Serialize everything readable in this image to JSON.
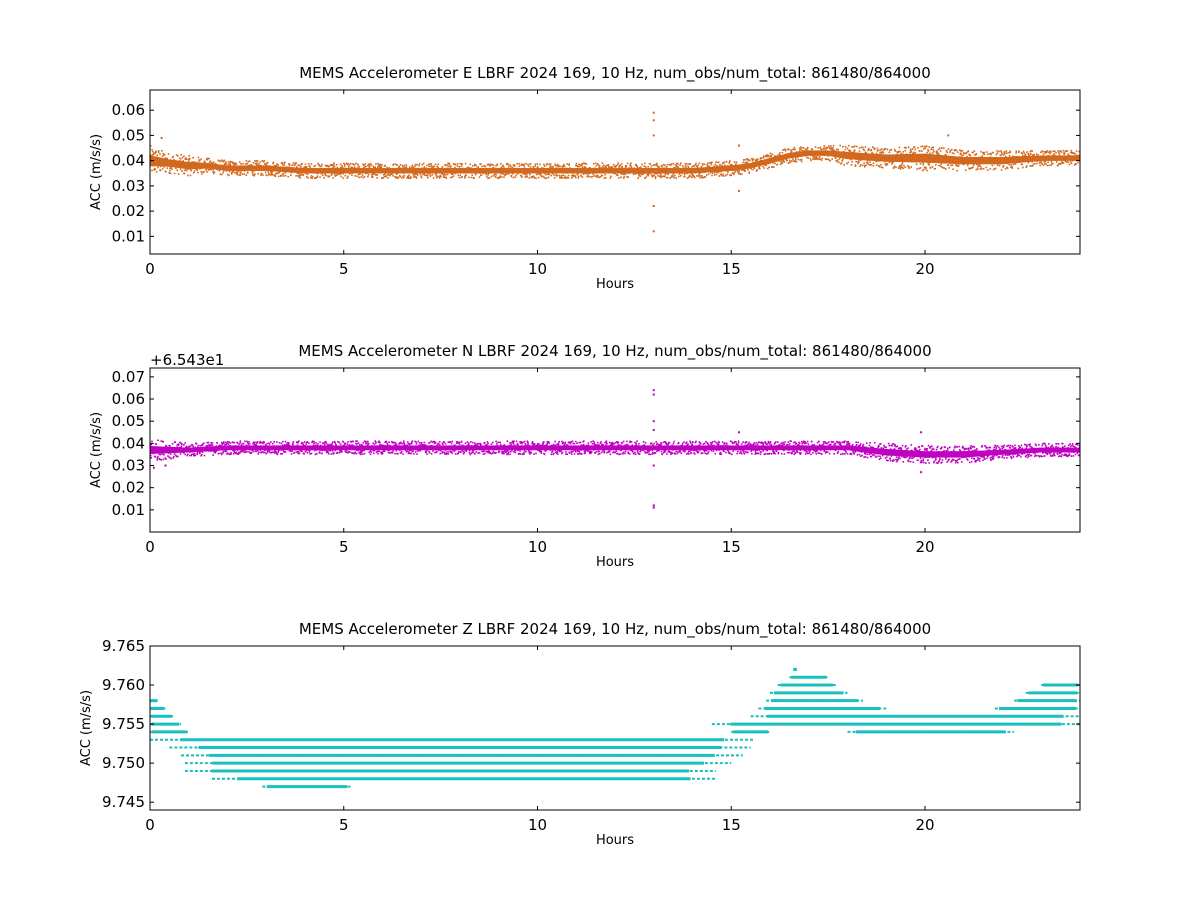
{
  "chart_data": [
    {
      "type": "scatter",
      "title": "MEMS Accelerometer E LBRF 2024 169, 10 Hz, num_obs/num_total: 861480/864000",
      "xlabel": "Hours",
      "ylabel": "ACC (m/s/s)",
      "offset_label": "",
      "color": "#D2691E",
      "xlim": [
        0,
        24
      ],
      "ylim": [
        0.003,
        0.068
      ],
      "x_ticks": [
        0,
        5,
        10,
        15,
        20
      ],
      "y_ticks": [
        0.01,
        0.02,
        0.03,
        0.04,
        0.05,
        0.06
      ],
      "x_tick_labels": [
        "0",
        "5",
        "10",
        "15",
        "20"
      ],
      "y_tick_labels": [
        "0.01",
        "0.02",
        "0.03",
        "0.04",
        "0.05",
        "0.06"
      ],
      "series": [
        {
          "x": [
            0,
            0.5,
            1,
            1.5,
            2,
            3,
            4,
            5,
            6,
            7,
            8,
            9,
            10,
            11,
            12,
            13,
            14,
            15,
            15.5,
            16,
            16.5,
            17,
            17.5,
            18,
            19,
            20,
            21,
            22,
            23,
            24
          ],
          "y": [
            0.04,
            0.039,
            0.038,
            0.038,
            0.037,
            0.037,
            0.036,
            0.036,
            0.036,
            0.036,
            0.036,
            0.036,
            0.036,
            0.036,
            0.036,
            0.036,
            0.036,
            0.037,
            0.038,
            0.04,
            0.042,
            0.043,
            0.043,
            0.042,
            0.041,
            0.041,
            0.04,
            0.04,
            0.041,
            0.041
          ],
          "spread": [
            0.006,
            0.004,
            0.004,
            0.003,
            0.003,
            0.003,
            0.003,
            0.003,
            0.003,
            0.003,
            0.003,
            0.003,
            0.003,
            0.003,
            0.003,
            0.003,
            0.003,
            0.003,
            0.003,
            0.003,
            0.003,
            0.003,
            0.003,
            0.004,
            0.004,
            0.005,
            0.004,
            0.004,
            0.003,
            0.003
          ]
        }
      ],
      "outliers": [
        {
          "x": 0.3,
          "y": 0.049
        },
        {
          "x": 13.0,
          "y": 0.059
        },
        {
          "x": 13.0,
          "y": 0.056
        },
        {
          "x": 13.0,
          "y": 0.05
        },
        {
          "x": 13.0,
          "y": 0.022
        },
        {
          "x": 13.0,
          "y": 0.012
        },
        {
          "x": 15.2,
          "y": 0.046
        },
        {
          "x": 15.2,
          "y": 0.028
        },
        {
          "x": 20.6,
          "y": 0.05
        }
      ]
    },
    {
      "type": "scatter",
      "title": "MEMS Accelerometer N LBRF 2024 169, 10 Hz, num_obs/num_total: 861480/864000",
      "xlabel": "Hours",
      "ylabel": "ACC (m/s/s)",
      "offset_label": "+6.543e1",
      "color": "#C000C0",
      "xlim": [
        0,
        24
      ],
      "ylim": [
        0.0,
        0.074
      ],
      "x_ticks": [
        0,
        5,
        10,
        15,
        20
      ],
      "y_ticks": [
        0.01,
        0.02,
        0.03,
        0.04,
        0.05,
        0.06,
        0.07
      ],
      "x_tick_labels": [
        "0",
        "5",
        "10",
        "15",
        "20"
      ],
      "y_tick_labels": [
        "0.01",
        "0.02",
        "0.03",
        "0.04",
        "0.05",
        "0.06",
        "0.07"
      ],
      "series": [
        {
          "x": [
            0,
            1,
            2,
            3,
            4,
            5,
            6,
            7,
            8,
            9,
            10,
            11,
            12,
            13,
            14,
            15,
            16,
            17,
            18,
            19,
            20,
            21,
            22,
            23,
            24
          ],
          "y": [
            0.037,
            0.037,
            0.038,
            0.038,
            0.038,
            0.038,
            0.038,
            0.038,
            0.038,
            0.038,
            0.038,
            0.038,
            0.038,
            0.038,
            0.038,
            0.038,
            0.038,
            0.038,
            0.038,
            0.036,
            0.035,
            0.035,
            0.036,
            0.037,
            0.037
          ],
          "spread": [
            0.005,
            0.003,
            0.003,
            0.003,
            0.003,
            0.003,
            0.003,
            0.003,
            0.003,
            0.003,
            0.003,
            0.003,
            0.003,
            0.003,
            0.003,
            0.003,
            0.003,
            0.003,
            0.003,
            0.004,
            0.004,
            0.004,
            0.003,
            0.003,
            0.003
          ]
        }
      ],
      "outliers": [
        {
          "x": 13.0,
          "y": 0.064
        },
        {
          "x": 13.0,
          "y": 0.062
        },
        {
          "x": 13.0,
          "y": 0.05
        },
        {
          "x": 13.0,
          "y": 0.046
        },
        {
          "x": 13.0,
          "y": 0.03
        },
        {
          "x": 13.0,
          "y": 0.012
        },
        {
          "x": 13.0,
          "y": 0.011
        },
        {
          "x": 15.2,
          "y": 0.045
        },
        {
          "x": 19.9,
          "y": 0.045
        },
        {
          "x": 19.9,
          "y": 0.027
        },
        {
          "x": 0.1,
          "y": 0.029
        },
        {
          "x": 0.4,
          "y": 0.03
        }
      ]
    },
    {
      "type": "scatter",
      "title": "MEMS Accelerometer Z LBRF 2024 169, 10 Hz, num_obs/num_total: 861480/864000",
      "xlabel": "Hours",
      "ylabel": "ACC (m/s/s)",
      "offset_label": "",
      "color": "#1ABFBF",
      "xlim": [
        0,
        24
      ],
      "ylim": [
        9.744,
        9.765
      ],
      "x_ticks": [
        0,
        5,
        10,
        15,
        20
      ],
      "y_ticks": [
        9.745,
        9.75,
        9.755,
        9.76,
        9.765
      ],
      "x_tick_labels": [
        "0",
        "5",
        "10",
        "15",
        "20"
      ],
      "y_tick_labels": [
        "9.745",
        "9.750",
        "9.755",
        "9.760",
        "9.765"
      ],
      "quantized_levels": [
        {
          "y": 9.747,
          "x_from": 2.9,
          "x_to": 5.2
        },
        {
          "y": 9.748,
          "x_from": 1.6,
          "x_to": 14.6
        },
        {
          "y": 9.749,
          "x_from": 0.9,
          "x_to": 14.6
        },
        {
          "y": 9.75,
          "x_from": 0.9,
          "x_to": 15.0
        },
        {
          "y": 9.751,
          "x_from": 0.8,
          "x_to": 15.3
        },
        {
          "y": 9.752,
          "x_from": 0.5,
          "x_to": 15.5
        },
        {
          "y": 9.753,
          "x_from": 0.0,
          "x_to": 15.6
        },
        {
          "y": 9.754,
          "x_from": 0.0,
          "x_to": 1.0
        },
        {
          "y": 9.754,
          "x_from": 15.0,
          "x_to": 16.0
        },
        {
          "y": 9.754,
          "x_from": 18.0,
          "x_to": 22.3
        },
        {
          "y": 9.755,
          "x_from": 0.0,
          "x_to": 0.8
        },
        {
          "y": 9.755,
          "x_from": 14.5,
          "x_to": 24.0
        },
        {
          "y": 9.756,
          "x_from": 0.0,
          "x_to": 0.6
        },
        {
          "y": 9.756,
          "x_from": 15.5,
          "x_to": 24.0
        },
        {
          "y": 9.757,
          "x_from": 0.0,
          "x_to": 0.4
        },
        {
          "y": 9.757,
          "x_from": 15.7,
          "x_to": 19.0
        },
        {
          "y": 9.757,
          "x_from": 21.8,
          "x_to": 24.0
        },
        {
          "y": 9.758,
          "x_from": 0.0,
          "x_to": 0.2
        },
        {
          "y": 9.758,
          "x_from": 15.9,
          "x_to": 18.4
        },
        {
          "y": 9.758,
          "x_from": 22.3,
          "x_to": 24.0
        },
        {
          "y": 9.759,
          "x_from": 16.0,
          "x_to": 18.0
        },
        {
          "y": 9.759,
          "x_from": 22.6,
          "x_to": 24.0
        },
        {
          "y": 9.76,
          "x_from": 16.2,
          "x_to": 17.7
        },
        {
          "y": 9.76,
          "x_from": 23.0,
          "x_to": 24.0
        },
        {
          "y": 9.761,
          "x_from": 16.5,
          "x_to": 17.5
        },
        {
          "y": 9.762,
          "x_from": 16.6,
          "x_to": 16.7
        }
      ]
    }
  ]
}
